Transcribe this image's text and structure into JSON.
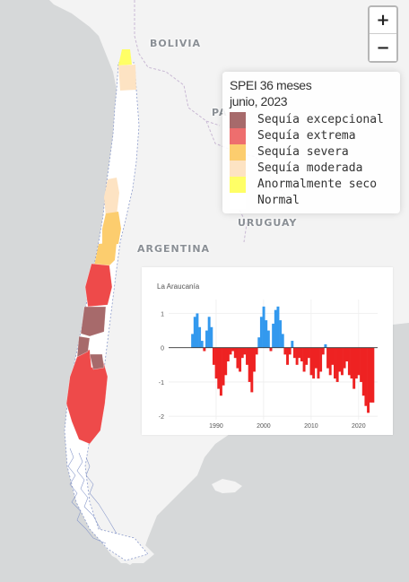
{
  "map": {
    "countries": [
      "BOLIVIA",
      "PA",
      "ARGENTINA",
      "URUGUAY"
    ],
    "colors": {
      "water": "#d6d8d9",
      "land": "#f3f3f3",
      "border": "#b7a8c0"
    }
  },
  "zoom": {
    "in_label": "+",
    "out_label": "−"
  },
  "legend": {
    "title_line1": "SPEI 36 meses",
    "title_line2": "junio, 2023",
    "items": [
      {
        "label": "Sequía excepcional",
        "color": "#a76a6b"
      },
      {
        "label": "Sequía extrema",
        "color": "#ee6e6e"
      },
      {
        "label": "Sequía severa",
        "color": "#fccd6e"
      },
      {
        "label": "Sequía moderada",
        "color": "#fde3c3"
      },
      {
        "label": "Anormalmente seco",
        "color": "#ffff66"
      },
      {
        "label": "Normal",
        "color": "#ffffff"
      }
    ]
  },
  "chart_data": {
    "type": "bar",
    "title": "La Araucanía",
    "xlabel": "",
    "ylabel": "",
    "ylim": [
      -2.1,
      1.3
    ],
    "xlim": [
      1980,
      2024
    ],
    "xticks": [
      1990,
      2000,
      2010,
      2020
    ],
    "yticks": [
      1,
      0,
      -1,
      -2
    ],
    "colors": {
      "positive": "#3399ee",
      "negative": "#ee2222"
    },
    "series": [
      {
        "x": [
          1985.0,
          1985.5,
          1986.0,
          1986.5,
          1987.0,
          1987.5,
          1988.0,
          1988.5,
          1989.0,
          1989.5,
          1990.0,
          1990.5,
          1991.0,
          1991.5,
          1992.0,
          1992.5,
          1993.0,
          1993.5,
          1994.0,
          1994.5,
          1995.0,
          1995.5,
          1996.0,
          1996.5,
          1997.0,
          1997.5,
          1998.0,
          1998.5,
          1999.0,
          1999.5,
          2000.0,
          2000.5,
          2001.0,
          2001.5,
          2002.0,
          2002.5,
          2003.0,
          2003.5,
          2004.0,
          2004.5,
          2005.0,
          2005.5,
          2006.0,
          2006.5,
          2007.0,
          2007.5,
          2008.0,
          2008.5,
          2009.0,
          2009.5,
          2010.0,
          2010.5,
          2011.0,
          2011.5,
          2012.0,
          2012.5,
          2013.0,
          2013.5,
          2014.0,
          2014.5,
          2015.0,
          2015.5,
          2016.0,
          2016.5,
          2017.0,
          2017.5,
          2018.0,
          2018.5,
          2019.0,
          2019.5,
          2020.0,
          2020.5,
          2021.0,
          2021.5,
          2022.0,
          2022.5,
          2023.0
        ],
        "values": [
          0.4,
          0.9,
          1.0,
          0.6,
          0.2,
          -0.1,
          0.5,
          0.9,
          0.6,
          -0.5,
          -0.9,
          -1.2,
          -1.4,
          -1.1,
          -0.8,
          -0.4,
          -0.2,
          -0.1,
          -0.3,
          -0.6,
          -0.7,
          -0.3,
          -0.2,
          -0.5,
          -1.0,
          -1.3,
          -0.7,
          -0.2,
          0.3,
          0.9,
          1.2,
          0.8,
          0.5,
          -0.1,
          0.7,
          1.1,
          1.2,
          0.8,
          0.4,
          -0.2,
          -0.5,
          -0.2,
          0.2,
          -0.3,
          -0.5,
          -0.3,
          -0.4,
          -0.7,
          -0.5,
          -0.3,
          -0.8,
          -0.9,
          -0.6,
          -0.9,
          -0.7,
          -0.2,
          0.1,
          -0.6,
          -0.8,
          -0.5,
          -0.9,
          -1.0,
          -0.7,
          -0.8,
          -0.6,
          -0.4,
          -0.8,
          -0.9,
          -1.2,
          -0.9,
          -0.8,
          -1.0,
          -1.4,
          -1.7,
          -1.9,
          -1.6,
          -1.6
        ]
      }
    ]
  }
}
